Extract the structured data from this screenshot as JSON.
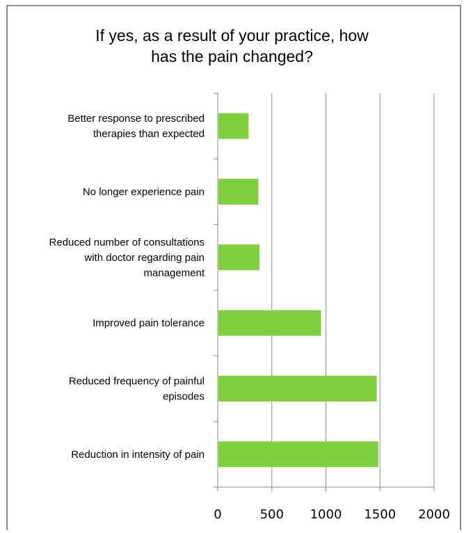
{
  "chart_data": {
    "type": "bar",
    "orientation": "horizontal",
    "title_lines": [
      "If yes, as a result of your practice, how",
      "has the pain changed?"
    ],
    "categories": [
      [
        "Better response to prescribed",
        "therapies than expected"
      ],
      [
        "No longer experience pain"
      ],
      [
        "Reduced number of consultations",
        "with doctor regarding pain",
        "management"
      ],
      [
        "Improved pain tolerance"
      ],
      [
        "Reduced frequency of painful",
        "episodes"
      ],
      [
        "Reduction in intensity of pain"
      ]
    ],
    "values": [
      285,
      375,
      385,
      955,
      1470,
      1485
    ],
    "xlim": [
      0,
      2000
    ],
    "xticks": [
      "0",
      "500",
      "1000",
      "1500",
      "2000"
    ],
    "grid": true,
    "legend": "none",
    "bar_color": "#7ed03e",
    "grid_color": "#868686"
  }
}
